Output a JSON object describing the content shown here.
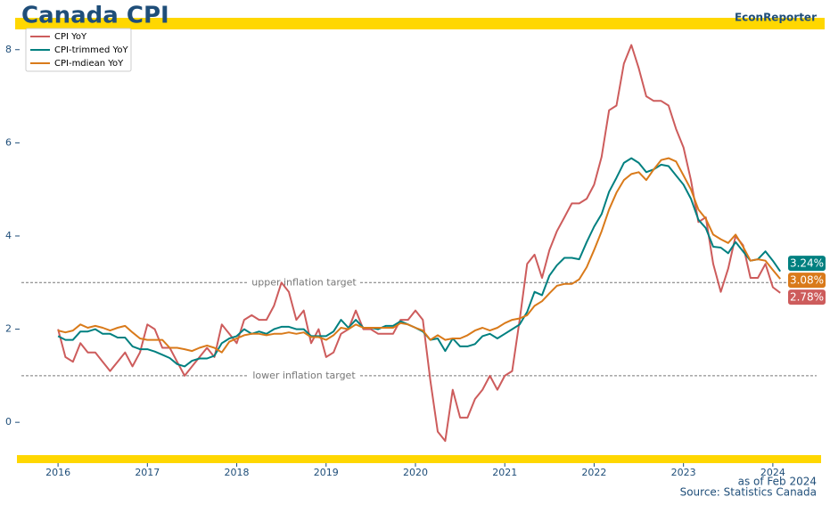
{
  "chart_data": {
    "type": "line",
    "title": "Canada CPI",
    "brand": "EconReporter",
    "footnotes": [
      "as of Feb 2024",
      "Source: Statistics Canada"
    ],
    "x": [
      2016,
      2016.083,
      2016.167,
      2016.25,
      2016.333,
      2016.417,
      2016.5,
      2016.583,
      2016.667,
      2016.75,
      2016.833,
      2016.917,
      2017,
      2017.083,
      2017.167,
      2017.25,
      2017.333,
      2017.417,
      2017.5,
      2017.583,
      2017.667,
      2017.75,
      2017.833,
      2017.917,
      2018,
      2018.083,
      2018.167,
      2018.25,
      2018.333,
      2018.417,
      2018.5,
      2018.583,
      2018.667,
      2018.75,
      2018.833,
      2018.917,
      2019,
      2019.083,
      2019.167,
      2019.25,
      2019.333,
      2019.417,
      2019.5,
      2019.583,
      2019.667,
      2019.75,
      2019.833,
      2019.917,
      2020,
      2020.083,
      2020.167,
      2020.25,
      2020.333,
      2020.417,
      2020.5,
      2020.583,
      2020.667,
      2020.75,
      2020.833,
      2020.917,
      2021,
      2021.083,
      2021.167,
      2021.25,
      2021.333,
      2021.417,
      2021.5,
      2021.583,
      2021.667,
      2021.75,
      2021.833,
      2021.917,
      2022,
      2022.083,
      2022.167,
      2022.25,
      2022.333,
      2022.417,
      2022.5,
      2022.583,
      2022.667,
      2022.75,
      2022.833,
      2022.917,
      2023,
      2023.083,
      2023.167,
      2023.25,
      2023.333,
      2023.417,
      2023.5,
      2023.583,
      2023.667,
      2023.75,
      2023.833,
      2023.917,
      2024,
      2024.083
    ],
    "series": [
      {
        "name": "CPI YoY",
        "color": "#cd5c5c",
        "end_label": "2.78%",
        "values": [
          2.0,
          1.4,
          1.3,
          1.7,
          1.5,
          1.5,
          1.3,
          1.1,
          1.3,
          1.5,
          1.2,
          1.5,
          2.1,
          2.0,
          1.6,
          1.6,
          1.3,
          1.0,
          1.2,
          1.4,
          1.6,
          1.4,
          2.1,
          1.9,
          1.7,
          2.2,
          2.3,
          2.2,
          2.2,
          2.5,
          3.0,
          2.8,
          2.2,
          2.4,
          1.7,
          2.0,
          1.4,
          1.5,
          1.9,
          2.0,
          2.4,
          2.0,
          2.0,
          1.9,
          1.9,
          1.9,
          2.2,
          2.2,
          2.4,
          2.2,
          0.9,
          -0.2,
          -0.4,
          0.7,
          0.1,
          0.1,
          0.5,
          0.7,
          1.0,
          0.7,
          1.0,
          1.1,
          2.2,
          3.4,
          3.6,
          3.1,
          3.7,
          4.1,
          4.4,
          4.7,
          4.7,
          4.8,
          5.1,
          5.7,
          6.7,
          6.8,
          7.7,
          8.1,
          7.6,
          7.0,
          6.9,
          6.9,
          6.8,
          6.3,
          5.9,
          5.2,
          4.3,
          4.4,
          3.4,
          2.8,
          3.3,
          4.0,
          3.8,
          3.1,
          3.1,
          3.4,
          2.9,
          2.78
        ]
      },
      {
        "name": "CPI-trimmed YoY",
        "color": "#008080",
        "end_label": "3.24%",
        "values": [
          1.85,
          1.77,
          1.77,
          1.95,
          1.95,
          2.0,
          1.9,
          1.9,
          1.82,
          1.82,
          1.63,
          1.57,
          1.57,
          1.52,
          1.45,
          1.38,
          1.25,
          1.2,
          1.32,
          1.37,
          1.37,
          1.43,
          1.7,
          1.8,
          1.85,
          2.0,
          1.9,
          1.95,
          1.9,
          2.0,
          2.05,
          2.05,
          2.0,
          2.0,
          1.85,
          1.85,
          1.85,
          1.95,
          2.2,
          2.03,
          2.2,
          2.03,
          2.03,
          2.0,
          2.07,
          2.07,
          2.17,
          2.1,
          2.03,
          1.95,
          1.77,
          1.8,
          1.53,
          1.8,
          1.63,
          1.63,
          1.68,
          1.85,
          1.9,
          1.8,
          1.9,
          2.0,
          2.1,
          2.37,
          2.8,
          2.73,
          3.15,
          3.37,
          3.53,
          3.53,
          3.5,
          3.87,
          4.2,
          4.47,
          4.95,
          5.25,
          5.57,
          5.67,
          5.57,
          5.37,
          5.43,
          5.53,
          5.5,
          5.3,
          5.1,
          4.8,
          4.35,
          4.17,
          3.77,
          3.75,
          3.63,
          3.87,
          3.67,
          3.47,
          3.5,
          3.67,
          3.47,
          3.24
        ]
      },
      {
        "name": "CPI-mdiean YoY",
        "color": "#d97a1a",
        "end_label": "3.08%",
        "values": [
          1.97,
          1.93,
          1.97,
          2.1,
          2.03,
          2.07,
          2.03,
          1.97,
          2.03,
          2.07,
          1.93,
          1.8,
          1.77,
          1.77,
          1.77,
          1.6,
          1.6,
          1.57,
          1.53,
          1.6,
          1.65,
          1.6,
          1.5,
          1.73,
          1.8,
          1.87,
          1.9,
          1.9,
          1.87,
          1.9,
          1.9,
          1.93,
          1.9,
          1.93,
          1.83,
          1.83,
          1.77,
          1.87,
          2.03,
          2.0,
          2.1,
          2.03,
          2.03,
          2.03,
          2.03,
          2.03,
          2.13,
          2.1,
          2.03,
          1.97,
          1.77,
          1.87,
          1.77,
          1.8,
          1.8,
          1.87,
          1.97,
          2.03,
          1.97,
          2.03,
          2.13,
          2.2,
          2.23,
          2.3,
          2.5,
          2.6,
          2.77,
          2.93,
          2.97,
          2.97,
          3.07,
          3.33,
          3.7,
          4.1,
          4.57,
          4.93,
          5.2,
          5.33,
          5.37,
          5.2,
          5.43,
          5.63,
          5.67,
          5.6,
          5.3,
          5.0,
          4.57,
          4.37,
          4.03,
          3.93,
          3.85,
          4.03,
          3.77,
          3.47,
          3.5,
          3.47,
          3.27,
          3.08
        ]
      }
    ],
    "hlines": [
      {
        "value": 3,
        "label": "upper inflation target"
      },
      {
        "value": 1,
        "label": "lower inflation target"
      }
    ],
    "xlim": [
      2015.55,
      2024.54
    ],
    "xticks": [
      2016,
      2017,
      2018,
      2019,
      2020,
      2021,
      2022,
      2023,
      2024
    ],
    "ylim": [
      -0.8,
      8.55
    ],
    "yticks": [
      0,
      2,
      4,
      6,
      8
    ],
    "legend": "upper-left",
    "grid": false
  }
}
